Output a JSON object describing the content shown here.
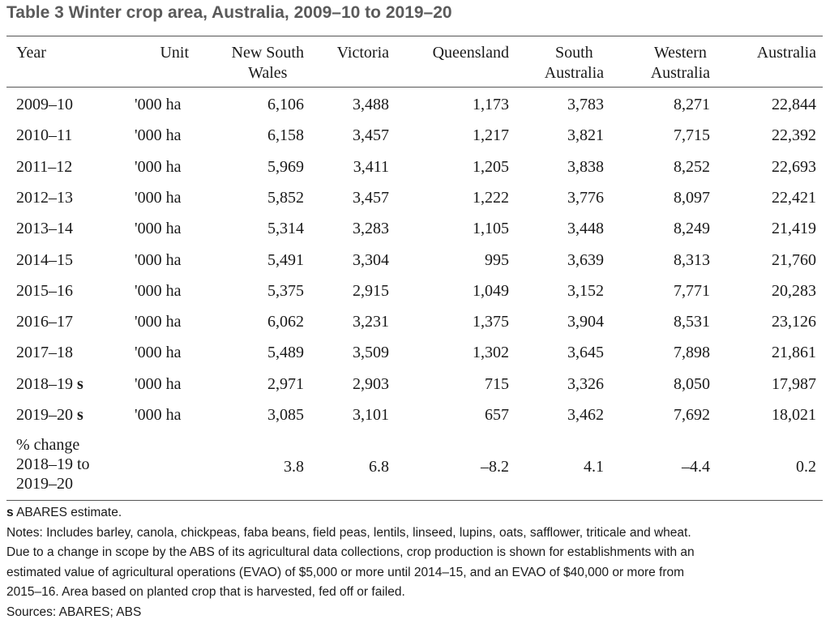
{
  "title": "Table 3 Winter crop area, Australia, 2009–10 to 2019–20",
  "headers": {
    "year": "Year",
    "unit": "Unit",
    "nsw_line1": "New South",
    "nsw_line2": "Wales",
    "vic": "Victoria",
    "qld": "Queensland",
    "sa_line1": "South",
    "sa_line2": "Australia",
    "wa_line1": "Western",
    "wa_line2": "Australia",
    "aus": "Australia"
  },
  "rows": [
    {
      "year": "2009–10",
      "est": "",
      "unit": "'000 ha",
      "nsw": "6,106",
      "vic": "3,488",
      "qld": "1,173",
      "sa": "3,783",
      "wa": "8,271",
      "aus": "22,844"
    },
    {
      "year": "2010–11",
      "est": "",
      "unit": "'000 ha",
      "nsw": "6,158",
      "vic": "3,457",
      "qld": "1,217",
      "sa": "3,821",
      "wa": "7,715",
      "aus": "22,392"
    },
    {
      "year": "2011–12",
      "est": "",
      "unit": "'000 ha",
      "nsw": "5,969",
      "vic": "3,411",
      "qld": "1,205",
      "sa": "3,838",
      "wa": "8,252",
      "aus": "22,693"
    },
    {
      "year": "2012–13",
      "est": "",
      "unit": "'000 ha",
      "nsw": "5,852",
      "vic": "3,457",
      "qld": "1,222",
      "sa": "3,776",
      "wa": "8,097",
      "aus": "22,421"
    },
    {
      "year": "2013–14",
      "est": "",
      "unit": "'000 ha",
      "nsw": "5,314",
      "vic": "3,283",
      "qld": "1,105",
      "sa": "3,448",
      "wa": "8,249",
      "aus": "21,419"
    },
    {
      "year": "2014–15",
      "est": "",
      "unit": "'000 ha",
      "nsw": "5,491",
      "vic": "3,304",
      "qld": "995",
      "sa": "3,639",
      "wa": "8,313",
      "aus": "21,760"
    },
    {
      "year": "2015–16",
      "est": "",
      "unit": "'000 ha",
      "nsw": "5,375",
      "vic": "2,915",
      "qld": "1,049",
      "sa": "3,152",
      "wa": "7,771",
      "aus": "20,283"
    },
    {
      "year": "2016–17",
      "est": "",
      "unit": "'000 ha",
      "nsw": "6,062",
      "vic": "3,231",
      "qld": "1,375",
      "sa": "3,904",
      "wa": "8,531",
      "aus": "23,126"
    },
    {
      "year": "2017–18",
      "est": "",
      "unit": "'000 ha",
      "nsw": "5,489",
      "vic": "3,509",
      "qld": "1,302",
      "sa": "3,645",
      "wa": "7,898",
      "aus": "21,861"
    },
    {
      "year": "2018–19",
      "est": "s",
      "unit": "'000 ha",
      "nsw": "2,971",
      "vic": "2,903",
      "qld": "715",
      "sa": "3,326",
      "wa": "8,050",
      "aus": "17,987"
    },
    {
      "year": "2019–20",
      "est": "s",
      "unit": "'000 ha",
      "nsw": "3,085",
      "vic": "3,101",
      "qld": "657",
      "sa": "3,462",
      "wa": "7,692",
      "aus": "18,021"
    }
  ],
  "change": {
    "label_line1": "% change",
    "label_line2": "2018–19 to",
    "label_line3": "2019–20",
    "nsw": "3.8",
    "vic": "6.8",
    "qld": "–8.2",
    "sa": "4.1",
    "wa": "–4.4",
    "aus": "0.2"
  },
  "notes": {
    "est_symbol": "s",
    "est_text": " ABARES estimate.",
    "line1": "Notes: Includes barley, canola, chickpeas, faba beans, field peas, lentils, linseed, lupins, oats, safflower, triticale and wheat.",
    "line2": "Due to a change in scope by the ABS of its agricultural data collections, crop production is shown for establishments with an",
    "line3": "estimated value of agricultural operations (EVAO) of $5,000 or more until 2014–15, and an EVAO of $40,000 or more from",
    "line4": "2015–16. Area based on planted crop that is harvested, fed off or failed.",
    "sources": "Sources: ABARES; ABS"
  }
}
